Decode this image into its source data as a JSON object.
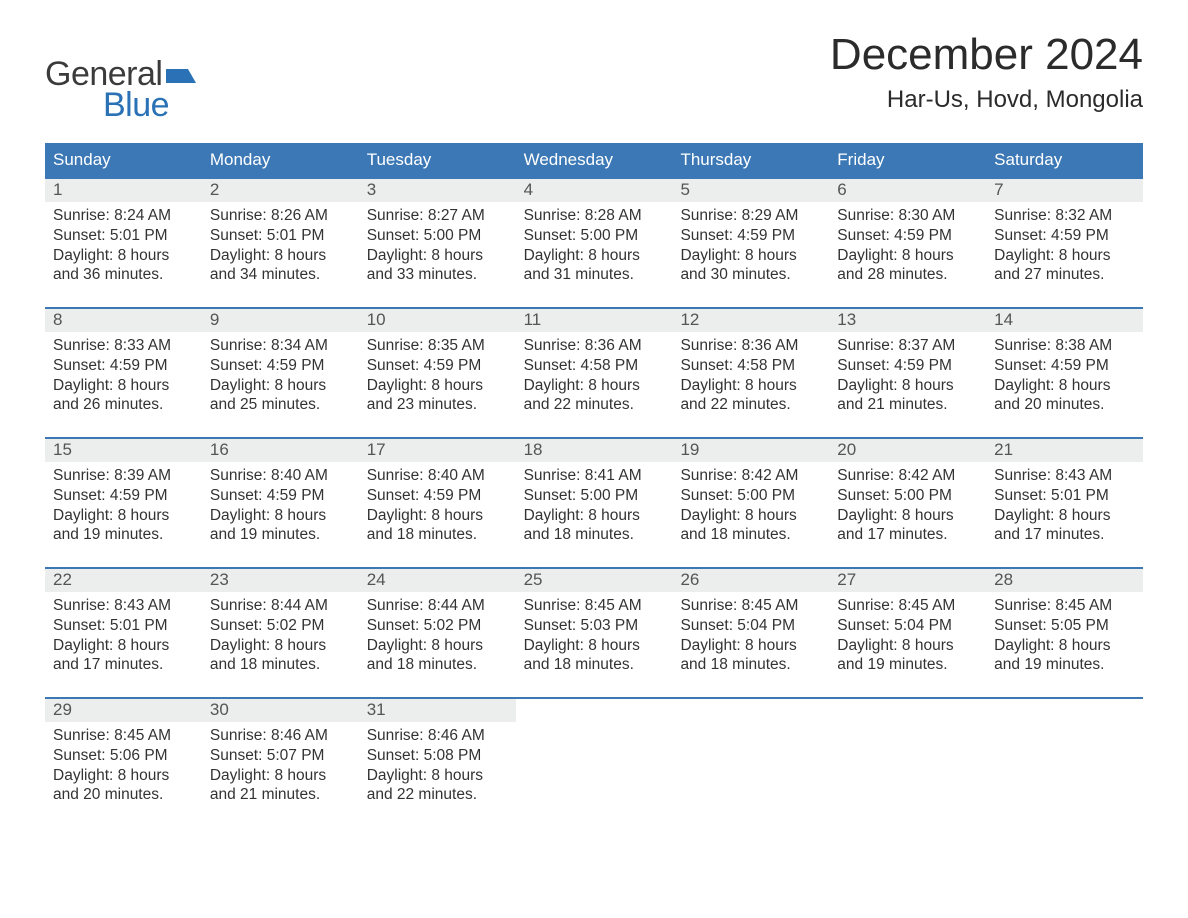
{
  "logo": {
    "text1": "General",
    "text2": "Blue"
  },
  "title": "December 2024",
  "location": "Har-Us, Hovd, Mongolia",
  "colors": {
    "header_bg": "#3b78b5",
    "header_text": "#ffffff",
    "daynum_bg": "#eceded",
    "row_border": "#3b78b5",
    "text": "#333333",
    "logo_blue": "#2a72b5"
  },
  "dayHeaders": [
    "Sunday",
    "Monday",
    "Tuesday",
    "Wednesday",
    "Thursday",
    "Friday",
    "Saturday"
  ],
  "weeks": [
    [
      {
        "n": "1",
        "sr": "8:24 AM",
        "ss": "5:01 PM",
        "dl": "8 hours and 36 minutes."
      },
      {
        "n": "2",
        "sr": "8:26 AM",
        "ss": "5:01 PM",
        "dl": "8 hours and 34 minutes."
      },
      {
        "n": "3",
        "sr": "8:27 AM",
        "ss": "5:00 PM",
        "dl": "8 hours and 33 minutes."
      },
      {
        "n": "4",
        "sr": "8:28 AM",
        "ss": "5:00 PM",
        "dl": "8 hours and 31 minutes."
      },
      {
        "n": "5",
        "sr": "8:29 AM",
        "ss": "4:59 PM",
        "dl": "8 hours and 30 minutes."
      },
      {
        "n": "6",
        "sr": "8:30 AM",
        "ss": "4:59 PM",
        "dl": "8 hours and 28 minutes."
      },
      {
        "n": "7",
        "sr": "8:32 AM",
        "ss": "4:59 PM",
        "dl": "8 hours and 27 minutes."
      }
    ],
    [
      {
        "n": "8",
        "sr": "8:33 AM",
        "ss": "4:59 PM",
        "dl": "8 hours and 26 minutes."
      },
      {
        "n": "9",
        "sr": "8:34 AM",
        "ss": "4:59 PM",
        "dl": "8 hours and 25 minutes."
      },
      {
        "n": "10",
        "sr": "8:35 AM",
        "ss": "4:59 PM",
        "dl": "8 hours and 23 minutes."
      },
      {
        "n": "11",
        "sr": "8:36 AM",
        "ss": "4:58 PM",
        "dl": "8 hours and 22 minutes."
      },
      {
        "n": "12",
        "sr": "8:36 AM",
        "ss": "4:58 PM",
        "dl": "8 hours and 22 minutes."
      },
      {
        "n": "13",
        "sr": "8:37 AM",
        "ss": "4:59 PM",
        "dl": "8 hours and 21 minutes."
      },
      {
        "n": "14",
        "sr": "8:38 AM",
        "ss": "4:59 PM",
        "dl": "8 hours and 20 minutes."
      }
    ],
    [
      {
        "n": "15",
        "sr": "8:39 AM",
        "ss": "4:59 PM",
        "dl": "8 hours and 19 minutes."
      },
      {
        "n": "16",
        "sr": "8:40 AM",
        "ss": "4:59 PM",
        "dl": "8 hours and 19 minutes."
      },
      {
        "n": "17",
        "sr": "8:40 AM",
        "ss": "4:59 PM",
        "dl": "8 hours and 18 minutes."
      },
      {
        "n": "18",
        "sr": "8:41 AM",
        "ss": "5:00 PM",
        "dl": "8 hours and 18 minutes."
      },
      {
        "n": "19",
        "sr": "8:42 AM",
        "ss": "5:00 PM",
        "dl": "8 hours and 18 minutes."
      },
      {
        "n": "20",
        "sr": "8:42 AM",
        "ss": "5:00 PM",
        "dl": "8 hours and 17 minutes."
      },
      {
        "n": "21",
        "sr": "8:43 AM",
        "ss": "5:01 PM",
        "dl": "8 hours and 17 minutes."
      }
    ],
    [
      {
        "n": "22",
        "sr": "8:43 AM",
        "ss": "5:01 PM",
        "dl": "8 hours and 17 minutes."
      },
      {
        "n": "23",
        "sr": "8:44 AM",
        "ss": "5:02 PM",
        "dl": "8 hours and 18 minutes."
      },
      {
        "n": "24",
        "sr": "8:44 AM",
        "ss": "5:02 PM",
        "dl": "8 hours and 18 minutes."
      },
      {
        "n": "25",
        "sr": "8:45 AM",
        "ss": "5:03 PM",
        "dl": "8 hours and 18 minutes."
      },
      {
        "n": "26",
        "sr": "8:45 AM",
        "ss": "5:04 PM",
        "dl": "8 hours and 18 minutes."
      },
      {
        "n": "27",
        "sr": "8:45 AM",
        "ss": "5:04 PM",
        "dl": "8 hours and 19 minutes."
      },
      {
        "n": "28",
        "sr": "8:45 AM",
        "ss": "5:05 PM",
        "dl": "8 hours and 19 minutes."
      }
    ],
    [
      {
        "n": "29",
        "sr": "8:45 AM",
        "ss": "5:06 PM",
        "dl": "8 hours and 20 minutes."
      },
      {
        "n": "30",
        "sr": "8:46 AM",
        "ss": "5:07 PM",
        "dl": "8 hours and 21 minutes."
      },
      {
        "n": "31",
        "sr": "8:46 AM",
        "ss": "5:08 PM",
        "dl": "8 hours and 22 minutes."
      },
      null,
      null,
      null,
      null
    ]
  ],
  "labels": {
    "sunrise": "Sunrise:",
    "sunset": "Sunset:",
    "daylight": "Daylight:"
  }
}
